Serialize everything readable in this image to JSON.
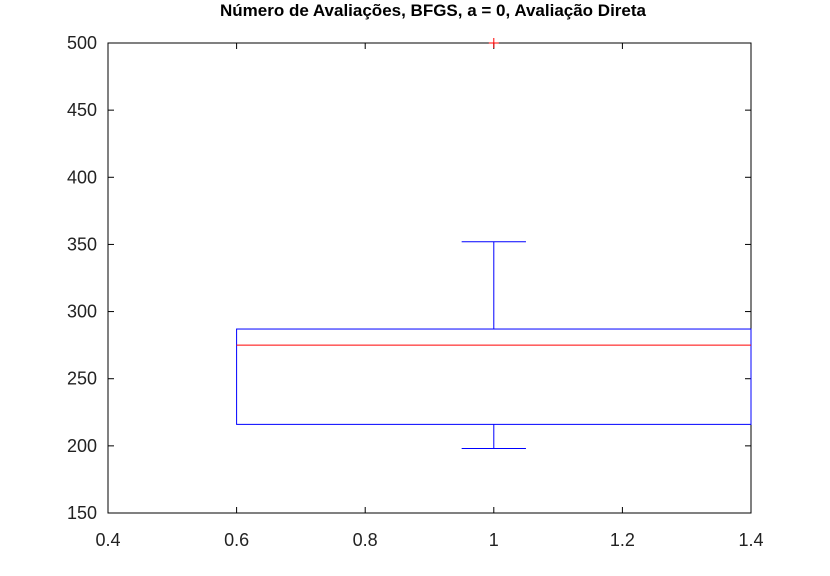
{
  "chart_data": {
    "type": "box",
    "title": "Número de Avaliações, BFGS, a = 0, Avaliação Direta",
    "xlabel": "",
    "ylabel": "",
    "xlim": [
      0.4,
      1.4
    ],
    "ylim": [
      150,
      500
    ],
    "xticks": [
      0.4,
      0.6,
      0.8,
      1,
      1.2,
      1.4
    ],
    "xtick_labels": [
      "0.4",
      "0.6",
      "0.8",
      "1",
      "1.2",
      "1.4"
    ],
    "yticks": [
      150,
      200,
      250,
      300,
      350,
      400,
      450,
      500
    ],
    "ytick_labels": [
      "150",
      "200",
      "250",
      "300",
      "350",
      "400",
      "450",
      "500"
    ],
    "grid": false,
    "box": {
      "position": 1,
      "box_x_range": [
        0.6,
        1.4
      ],
      "whisker_cap_x_range": [
        0.95,
        1.05
      ],
      "q1": 216,
      "median": 275,
      "q3": 287,
      "whisker_low": 198,
      "whisker_high": 352,
      "outliers": [
        500
      ]
    },
    "colors": {
      "box": "#0000ff",
      "median": "#ff0000",
      "outlier": "#ff0000",
      "axes": "#000000"
    }
  }
}
